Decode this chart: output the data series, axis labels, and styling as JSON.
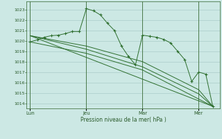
{
  "background_color": "#cce8e4",
  "grid_color": "#aaccca",
  "line_color": "#2d6e2d",
  "marker_color": "#2d6e2d",
  "xlabel": "Pression niveau de la mer( hPa )",
  "ylim_min": 1013.5,
  "ylim_max": 1023.8,
  "yticks": [
    1014,
    1015,
    1016,
    1017,
    1018,
    1019,
    1020,
    1021,
    1022,
    1023
  ],
  "xtick_labels": [
    "Lun",
    "Jeu",
    "Mar",
    "Mer"
  ],
  "xtick_positions": [
    0,
    48,
    96,
    144
  ],
  "vline_positions": [
    0,
    48,
    96,
    144
  ],
  "series1_x": [
    0,
    6,
    12,
    18,
    24,
    30,
    36,
    42,
    48,
    54,
    60,
    66,
    72,
    78,
    84,
    90,
    96,
    102,
    108,
    114,
    120,
    126,
    132,
    138,
    144,
    150,
    156
  ],
  "series1_y": [
    1019.9,
    1020.1,
    1020.35,
    1020.5,
    1020.55,
    1020.7,
    1020.9,
    1020.9,
    1023.1,
    1022.9,
    1022.5,
    1021.7,
    1021.0,
    1019.5,
    1018.5,
    1017.7,
    1020.55,
    1020.45,
    1020.35,
    1020.15,
    1019.8,
    1019.0,
    1018.2,
    1016.1,
    1017.0,
    1016.8,
    1013.7
  ],
  "series2_x": [
    0,
    156
  ],
  "series2_y": [
    1020.5,
    1013.7
  ],
  "series3_x": [
    0,
    48,
    96,
    144,
    156
  ],
  "series3_y": [
    1020.5,
    1019.5,
    1018.0,
    1015.3,
    1013.7
  ],
  "series4_x": [
    0,
    48,
    96,
    144,
    156
  ],
  "series4_y": [
    1020.5,
    1019.2,
    1017.5,
    1014.9,
    1013.7
  ],
  "series5_x": [
    0,
    48,
    96,
    156
  ],
  "series5_y": [
    1019.9,
    1018.8,
    1017.2,
    1013.7
  ],
  "xlim_min": -3,
  "xlim_max": 162
}
